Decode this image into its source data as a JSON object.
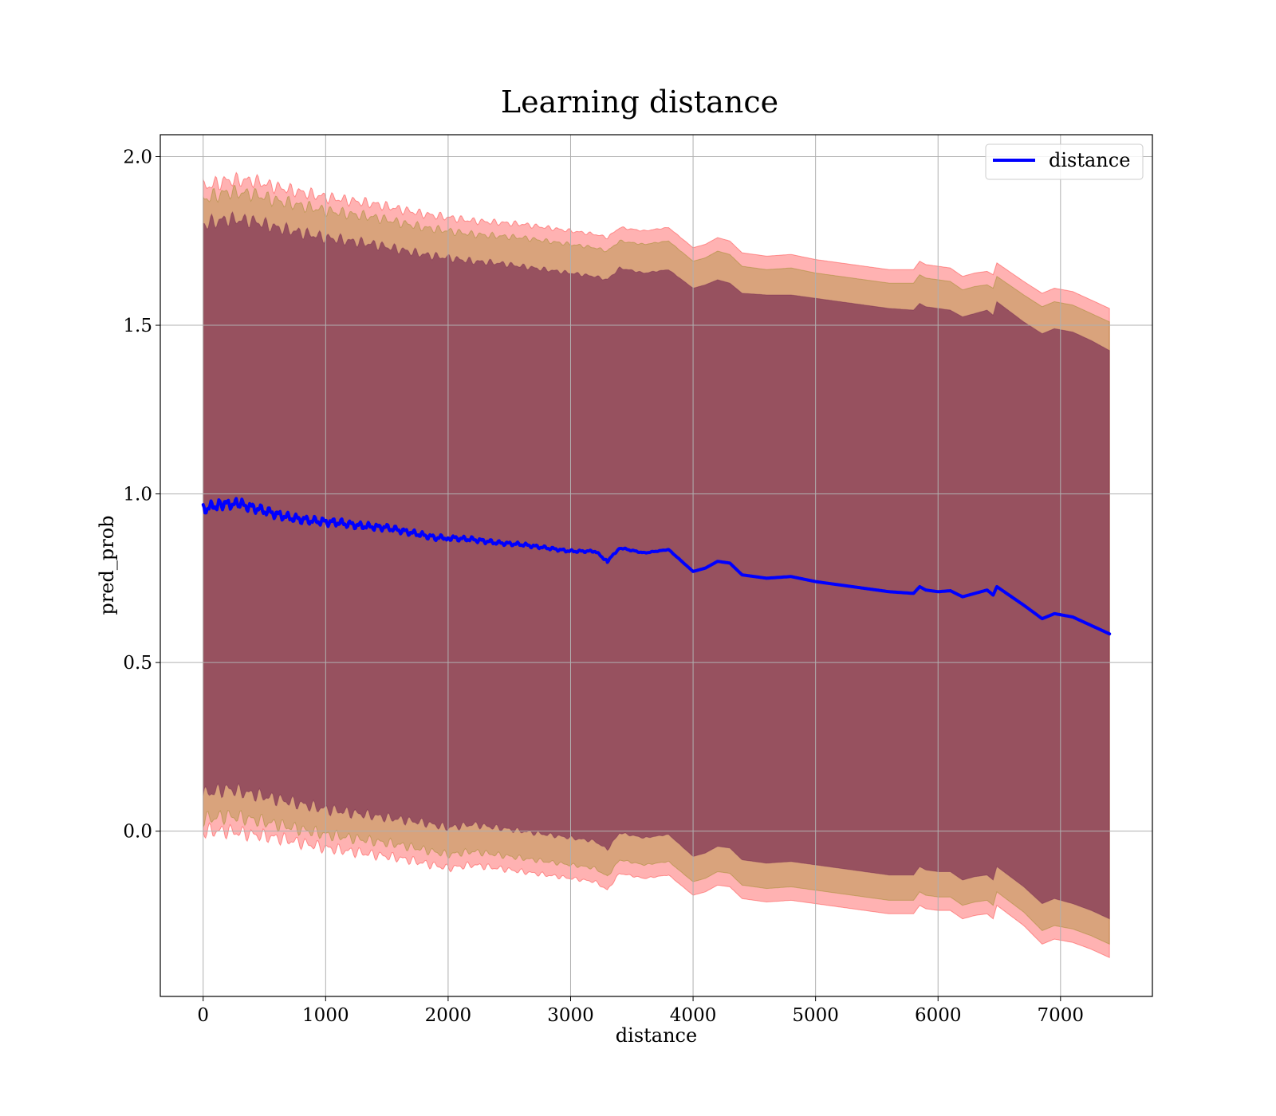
{
  "chart_data": {
    "type": "line",
    "title": "Learning distance",
    "xlabel": "distance",
    "ylabel": "pred_prob",
    "xlim": [
      -350,
      7750
    ],
    "ylim": [
      -0.49,
      2.065
    ],
    "xticks": [
      0,
      1000,
      2000,
      3000,
      4000,
      5000,
      6000,
      7000
    ],
    "yticks": [
      0.0,
      0.5,
      1.0,
      1.5,
      2.0
    ],
    "xtick_labels": [
      "0",
      "1000",
      "2000",
      "3000",
      "4000",
      "5000",
      "6000",
      "7000"
    ],
    "ytick_labels": [
      "0.0",
      "0.5",
      "1.0",
      "1.5",
      "2.0"
    ],
    "grid": true,
    "legend": {
      "position": "top-right",
      "entries": [
        "distance"
      ]
    },
    "series": [
      {
        "name": "distance",
        "color": "#0000ff",
        "x": [
          0,
          150,
          300,
          500,
          700,
          900,
          1100,
          1300,
          1500,
          1700,
          1900,
          2000,
          2200,
          2400,
          2600,
          2800,
          3000,
          3200,
          3300,
          3400,
          3600,
          3800,
          4000,
          4100,
          4200,
          4300,
          4400,
          4600,
          4800,
          5000,
          5200,
          5400,
          5600,
          5800,
          5850,
          5900,
          6000,
          6100,
          6200,
          6300,
          6400,
          6450,
          6480,
          6700,
          6850,
          6950,
          7100,
          7250,
          7400
        ],
        "y": [
          0.955,
          0.97,
          0.97,
          0.95,
          0.93,
          0.92,
          0.915,
          0.905,
          0.9,
          0.885,
          0.87,
          0.87,
          0.865,
          0.855,
          0.85,
          0.84,
          0.83,
          0.83,
          0.8,
          0.84,
          0.825,
          0.835,
          0.77,
          0.78,
          0.8,
          0.795,
          0.76,
          0.75,
          0.755,
          0.74,
          0.73,
          0.72,
          0.71,
          0.705,
          0.725,
          0.715,
          0.71,
          0.713,
          0.695,
          0.705,
          0.715,
          0.7,
          0.725,
          0.67,
          0.63,
          0.645,
          0.635,
          0.61,
          0.585
        ]
      }
    ],
    "bands": [
      {
        "color": "#ff0000",
        "opacity": 0.3,
        "x": [
          0,
          200,
          400,
          600,
          800,
          1000,
          1200,
          1400,
          1600,
          1800,
          2000,
          2200,
          2400,
          2600,
          2800,
          3000,
          3200,
          3300,
          3400,
          3600,
          3800,
          4000,
          4100,
          4200,
          4300,
          4400,
          4600,
          4800,
          5000,
          5200,
          5400,
          5600,
          5800,
          5850,
          5900,
          6000,
          6100,
          6200,
          6300,
          6400,
          6450,
          6480,
          6700,
          6850,
          6950,
          7100,
          7250,
          7400
        ],
        "upper": [
          1.91,
          1.93,
          1.93,
          1.91,
          1.895,
          1.88,
          1.87,
          1.86,
          1.845,
          1.83,
          1.82,
          1.81,
          1.805,
          1.8,
          1.79,
          1.78,
          1.77,
          1.76,
          1.79,
          1.78,
          1.79,
          1.73,
          1.74,
          1.76,
          1.75,
          1.715,
          1.705,
          1.71,
          1.695,
          1.685,
          1.675,
          1.665,
          1.665,
          1.69,
          1.68,
          1.675,
          1.67,
          1.645,
          1.655,
          1.66,
          1.65,
          1.685,
          1.63,
          1.595,
          1.61,
          1.6,
          1.575,
          1.55
        ],
        "lower": [
          0.0,
          0.0,
          -0.01,
          -0.02,
          -0.035,
          -0.05,
          -0.06,
          -0.07,
          -0.08,
          -0.095,
          -0.11,
          -0.1,
          -0.11,
          -0.12,
          -0.13,
          -0.14,
          -0.15,
          -0.175,
          -0.125,
          -0.14,
          -0.13,
          -0.19,
          -0.18,
          -0.16,
          -0.165,
          -0.2,
          -0.21,
          -0.205,
          -0.215,
          -0.225,
          -0.235,
          -0.245,
          -0.245,
          -0.22,
          -0.23,
          -0.235,
          -0.235,
          -0.26,
          -0.25,
          -0.245,
          -0.26,
          -0.22,
          -0.28,
          -0.335,
          -0.32,
          -0.33,
          -0.35,
          -0.375
        ]
      },
      {
        "color": "#808000",
        "opacity": 0.3,
        "x": [
          0,
          200,
          400,
          600,
          800,
          1000,
          1200,
          1400,
          1600,
          1800,
          2000,
          2200,
          2400,
          2600,
          2800,
          3000,
          3200,
          3300,
          3400,
          3600,
          3800,
          4000,
          4100,
          4200,
          4300,
          4400,
          4600,
          4800,
          5000,
          5200,
          5400,
          5600,
          5800,
          5850,
          5900,
          6000,
          6100,
          6200,
          6300,
          6400,
          6450,
          6480,
          6700,
          6850,
          6950,
          7100,
          7250,
          7400
        ],
        "upper": [
          1.875,
          1.895,
          1.89,
          1.87,
          1.855,
          1.84,
          1.83,
          1.82,
          1.805,
          1.79,
          1.78,
          1.77,
          1.765,
          1.76,
          1.75,
          1.74,
          1.73,
          1.72,
          1.75,
          1.74,
          1.75,
          1.69,
          1.7,
          1.72,
          1.71,
          1.675,
          1.665,
          1.67,
          1.655,
          1.645,
          1.635,
          1.625,
          1.625,
          1.65,
          1.64,
          1.635,
          1.63,
          1.605,
          1.615,
          1.62,
          1.61,
          1.645,
          1.59,
          1.555,
          1.57,
          1.56,
          1.535,
          1.51
        ],
        "lower": [
          0.035,
          0.045,
          0.035,
          0.02,
          0.005,
          -0.01,
          -0.02,
          -0.03,
          -0.04,
          -0.055,
          -0.07,
          -0.06,
          -0.07,
          -0.08,
          -0.09,
          -0.1,
          -0.11,
          -0.135,
          -0.085,
          -0.1,
          -0.09,
          -0.15,
          -0.14,
          -0.12,
          -0.125,
          -0.16,
          -0.17,
          -0.165,
          -0.175,
          -0.185,
          -0.195,
          -0.205,
          -0.205,
          -0.18,
          -0.19,
          -0.195,
          -0.195,
          -0.22,
          -0.21,
          -0.205,
          -0.22,
          -0.18,
          -0.24,
          -0.295,
          -0.28,
          -0.29,
          -0.31,
          -0.335
        ]
      },
      {
        "color": "#6a1b4d",
        "opacity": 0.6,
        "x": [
          0,
          200,
          400,
          600,
          800,
          1000,
          1200,
          1400,
          1600,
          1800,
          2000,
          2200,
          2400,
          2600,
          2800,
          3000,
          3200,
          3300,
          3400,
          3600,
          3800,
          4000,
          4100,
          4200,
          4300,
          4400,
          4600,
          4800,
          5000,
          5200,
          5400,
          5600,
          5800,
          5850,
          5900,
          6000,
          6100,
          6200,
          6300,
          6400,
          6450,
          6480,
          6700,
          6850,
          6950,
          7100,
          7250,
          7400
        ],
        "upper": [
          1.8,
          1.815,
          1.81,
          1.79,
          1.775,
          1.76,
          1.75,
          1.74,
          1.725,
          1.71,
          1.7,
          1.69,
          1.685,
          1.675,
          1.665,
          1.655,
          1.645,
          1.635,
          1.67,
          1.655,
          1.665,
          1.61,
          1.62,
          1.635,
          1.625,
          1.595,
          1.59,
          1.59,
          1.58,
          1.57,
          1.56,
          1.55,
          1.545,
          1.565,
          1.555,
          1.55,
          1.545,
          1.525,
          1.535,
          1.545,
          1.53,
          1.57,
          1.51,
          1.475,
          1.49,
          1.48,
          1.455,
          1.425
        ],
        "lower": [
          0.11,
          0.125,
          0.11,
          0.095,
          0.08,
          0.065,
          0.055,
          0.045,
          0.035,
          0.025,
          0.01,
          0.02,
          0.01,
          0.0,
          -0.01,
          -0.02,
          -0.03,
          -0.055,
          -0.005,
          -0.02,
          -0.01,
          -0.075,
          -0.065,
          -0.045,
          -0.05,
          -0.085,
          -0.095,
          -0.09,
          -0.1,
          -0.11,
          -0.12,
          -0.13,
          -0.13,
          -0.105,
          -0.115,
          -0.12,
          -0.12,
          -0.145,
          -0.135,
          -0.13,
          -0.145,
          -0.105,
          -0.165,
          -0.215,
          -0.2,
          -0.215,
          -0.235,
          -0.26
        ]
      }
    ]
  }
}
